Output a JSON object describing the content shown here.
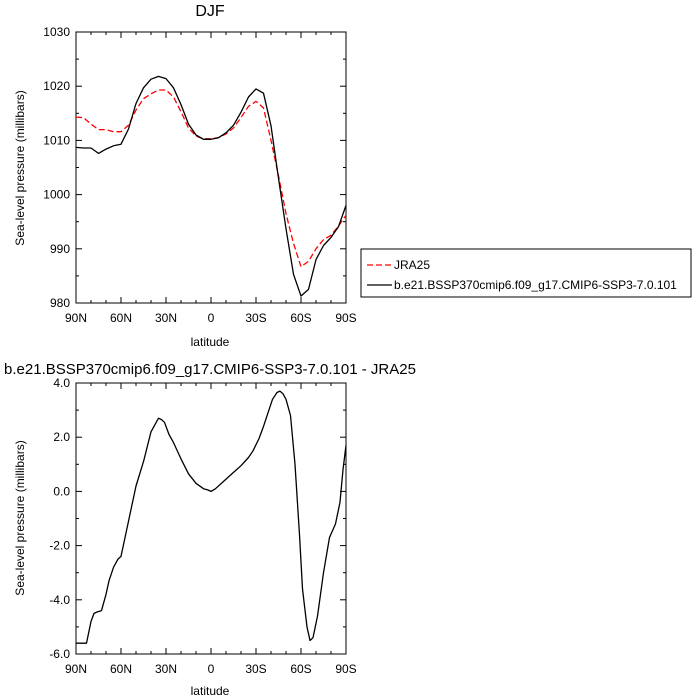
{
  "chart_data": [
    {
      "type": "line",
      "title": "DJF",
      "xlabel": "latitude",
      "ylabel": "Sea-level pressure (millibars)",
      "xlim": [
        90,
        -90
      ],
      "ylim": [
        980,
        1030
      ],
      "x_ticks": [
        {
          "value": 90,
          "label": "90N"
        },
        {
          "value": 60,
          "label": "60N"
        },
        {
          "value": 30,
          "label": "30N"
        },
        {
          "value": 0,
          "label": "0"
        },
        {
          "value": -30,
          "label": "30S"
        },
        {
          "value": -60,
          "label": "60S"
        },
        {
          "value": -90,
          "label": "90S"
        }
      ],
      "y_ticks": [
        {
          "value": 980,
          "label": "980"
        },
        {
          "value": 990,
          "label": "990"
        },
        {
          "value": 1000,
          "label": "1000"
        },
        {
          "value": 1010,
          "label": "1010"
        },
        {
          "value": 1020,
          "label": "1020"
        },
        {
          "value": 1030,
          "label": "1030"
        }
      ],
      "legend": "outside-right",
      "series": [
        {
          "name": "JRA25",
          "color": "#ff0000",
          "dash": "dashed",
          "x": [
            90,
            85,
            80,
            75,
            70,
            65,
            60,
            55,
            50,
            45,
            40,
            35,
            30,
            25,
            20,
            15,
            10,
            5,
            0,
            -5,
            -10,
            -15,
            -20,
            -25,
            -30,
            -35,
            -40,
            -45,
            -50,
            -55,
            -60,
            -65,
            -70,
            -75,
            -80,
            -85,
            -90
          ],
          "y": [
            1014.3,
            1014.2,
            1013.0,
            1012.0,
            1012.0,
            1011.6,
            1011.6,
            1012.8,
            1015.6,
            1017.7,
            1018.6,
            1019.3,
            1019.3,
            1018.0,
            1015.3,
            1012.3,
            1010.8,
            1010.3,
            1010.3,
            1010.5,
            1011.2,
            1012.3,
            1014.2,
            1016.3,
            1017.2,
            1016.0,
            1010.0,
            1003.5,
            996.5,
            991.0,
            986.7,
            987.7,
            990.0,
            991.7,
            992.5,
            994.2,
            996.2
          ]
        },
        {
          "name": "b.e21.BSSP370cmip6.f09_g17.CMIP6-SSP3-7.0.101",
          "color": "#000000",
          "dash": "solid",
          "x": [
            90,
            85,
            80,
            75,
            70,
            65,
            60,
            55,
            50,
            45,
            40,
            35,
            30,
            25,
            20,
            15,
            10,
            5,
            0,
            -5,
            -10,
            -15,
            -20,
            -25,
            -30,
            -35,
            -40,
            -45,
            -50,
            -55,
            -60,
            -65,
            -70,
            -75,
            -80,
            -85,
            -90
          ],
          "y": [
            1008.7,
            1008.6,
            1008.6,
            1007.6,
            1008.4,
            1009.0,
            1009.3,
            1012.1,
            1016.8,
            1019.7,
            1021.3,
            1021.8,
            1021.4,
            1019.7,
            1016.6,
            1013.0,
            1011.0,
            1010.2,
            1010.2,
            1010.5,
            1011.4,
            1012.8,
            1015.2,
            1018.0,
            1019.5,
            1018.7,
            1012.7,
            1003.0,
            993.7,
            985.3,
            981.3,
            982.5,
            988.0,
            990.6,
            992.1,
            994.1,
            998.0
          ]
        }
      ]
    },
    {
      "type": "line",
      "title": "b.e21.BSSP370cmip6.f09_g17.CMIP6-SSP3-7.0.101 - JRA25",
      "xlabel": "latitude",
      "ylabel": "Sea-level pressure (millibars)",
      "xlim": [
        90,
        -90
      ],
      "ylim": [
        -6,
        4
      ],
      "x_ticks": [
        {
          "value": 90,
          "label": "90N"
        },
        {
          "value": 60,
          "label": "60N"
        },
        {
          "value": 30,
          "label": "30N"
        },
        {
          "value": 0,
          "label": "0"
        },
        {
          "value": -30,
          "label": "30S"
        },
        {
          "value": -60,
          "label": "60S"
        },
        {
          "value": -90,
          "label": "90S"
        }
      ],
      "y_ticks": [
        {
          "value": -6,
          "label": "-6.0"
        },
        {
          "value": -4,
          "label": "-4.0"
        },
        {
          "value": -2,
          "label": "-2.0"
        },
        {
          "value": 0,
          "label": "0.0"
        },
        {
          "value": 2,
          "label": "2.0"
        },
        {
          "value": 4,
          "label": "4.0"
        }
      ],
      "series": [
        {
          "color": "#000000",
          "dash": "solid",
          "x": [
            90,
            87,
            85,
            83,
            80,
            78,
            76,
            73,
            70,
            68,
            65,
            62,
            60,
            55,
            50,
            45,
            40,
            35,
            33,
            31,
            28,
            25,
            20,
            15,
            10,
            5,
            2,
            0,
            -3,
            -8,
            -15,
            -20,
            -25,
            -28,
            -32,
            -35,
            -38,
            -41,
            -44,
            -46,
            -48,
            -50,
            -53,
            -56,
            -59,
            -61,
            -64,
            -66,
            -68,
            -71,
            -75,
            -79,
            -83,
            -86,
            -88,
            -90
          ],
          "y": [
            -5.6,
            -5.6,
            -5.6,
            -5.6,
            -4.8,
            -4.5,
            -4.45,
            -4.4,
            -3.8,
            -3.3,
            -2.8,
            -2.5,
            -2.4,
            -1.1,
            0.2,
            1.1,
            2.2,
            2.7,
            2.65,
            2.55,
            2.1,
            1.8,
            1.2,
            0.65,
            0.3,
            0.1,
            0.05,
            0.0,
            0.1,
            0.35,
            0.7,
            0.95,
            1.25,
            1.5,
            1.95,
            2.4,
            2.9,
            3.4,
            3.65,
            3.7,
            3.6,
            3.4,
            2.8,
            1.0,
            -1.6,
            -3.6,
            -5.0,
            -5.5,
            -5.4,
            -4.6,
            -3.0,
            -1.7,
            -1.2,
            -0.4,
            0.8,
            1.7
          ]
        }
      ]
    }
  ]
}
